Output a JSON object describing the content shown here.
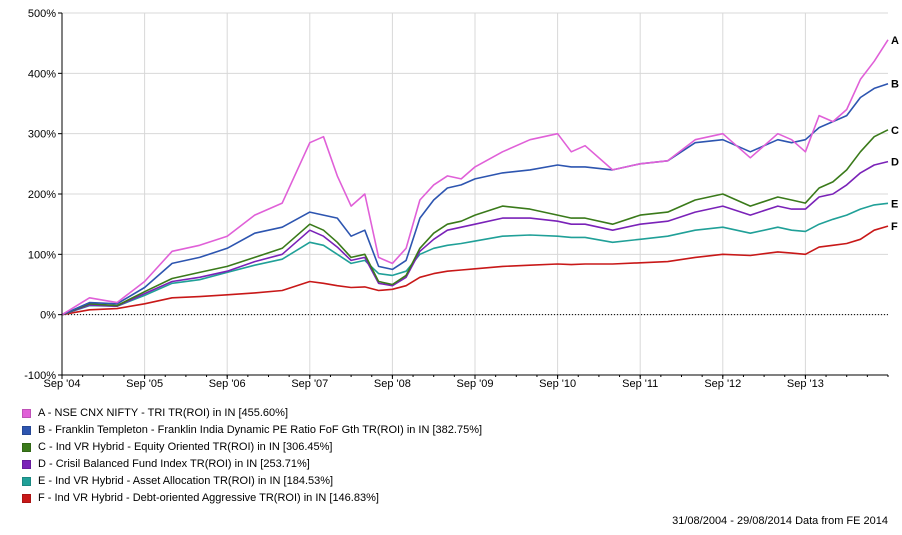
{
  "chart_data": {
    "type": "line",
    "x_ticks": [
      "Sep '04",
      "Sep '05",
      "Sep '06",
      "Sep '07",
      "Sep '08",
      "Sep '09",
      "Sep '10",
      "Sep '11",
      "Sep '12",
      "Sep '13"
    ],
    "y_ticks": [
      "500%",
      "400%",
      "300%",
      "200%",
      "100%",
      "0%",
      "-100%"
    ],
    "ylim": [
      -100,
      500
    ],
    "x_range": [
      2004.667,
      2014.667
    ],
    "grid": true,
    "x": [
      2004.667,
      2005.0,
      2005.333,
      2005.667,
      2006.0,
      2006.333,
      2006.667,
      2007.0,
      2007.333,
      2007.667,
      2007.833,
      2008.0,
      2008.167,
      2008.333,
      2008.5,
      2008.667,
      2008.833,
      2009.0,
      2009.167,
      2009.333,
      2009.5,
      2009.667,
      2010.0,
      2010.333,
      2010.667,
      2010.833,
      2011.0,
      2011.333,
      2011.667,
      2012.0,
      2012.333,
      2012.667,
      2013.0,
      2013.333,
      2013.5,
      2013.667,
      2013.833,
      2014.0,
      2014.167,
      2014.333,
      2014.5,
      2014.667
    ],
    "series": [
      {
        "label": "A",
        "color": "#e060d8",
        "values": [
          0,
          28,
          20,
          55,
          105,
          115,
          130,
          165,
          185,
          285,
          295,
          230,
          180,
          200,
          95,
          85,
          110,
          190,
          215,
          230,
          225,
          245,
          270,
          290,
          300,
          270,
          280,
          240,
          250,
          255,
          290,
          300,
          260,
          300,
          290,
          270,
          330,
          320,
          340,
          390,
          420,
          455.6
        ]
      },
      {
        "label": "B",
        "color": "#2d55b0",
        "values": [
          0,
          20,
          18,
          45,
          85,
          95,
          110,
          135,
          145,
          170,
          165,
          160,
          130,
          140,
          80,
          75,
          90,
          160,
          190,
          210,
          215,
          225,
          235,
          240,
          248,
          245,
          245,
          240,
          250,
          255,
          285,
          290,
          270,
          290,
          285,
          290,
          310,
          320,
          330,
          360,
          375,
          382.75
        ]
      },
      {
        "label": "C",
        "color": "#3a7a1a",
        "values": [
          0,
          18,
          15,
          38,
          60,
          70,
          80,
          95,
          110,
          150,
          140,
          120,
          95,
          100,
          55,
          50,
          65,
          110,
          135,
          150,
          155,
          165,
          180,
          175,
          165,
          160,
          160,
          150,
          165,
          170,
          190,
          200,
          180,
          195,
          190,
          185,
          210,
          220,
          240,
          270,
          295,
          306.45
        ]
      },
      {
        "label": "D",
        "color": "#7a22b8",
        "values": [
          0,
          16,
          14,
          35,
          55,
          62,
          72,
          88,
          100,
          140,
          130,
          112,
          90,
          95,
          52,
          48,
          62,
          105,
          125,
          140,
          145,
          150,
          160,
          160,
          155,
          150,
          150,
          140,
          150,
          155,
          170,
          180,
          165,
          180,
          175,
          175,
          195,
          200,
          215,
          235,
          248,
          253.71
        ]
      },
      {
        "label": "E",
        "color": "#20a098",
        "values": [
          0,
          15,
          14,
          32,
          52,
          58,
          70,
          82,
          92,
          120,
          115,
          100,
          85,
          90,
          68,
          65,
          72,
          100,
          110,
          115,
          118,
          122,
          130,
          132,
          130,
          128,
          128,
          120,
          125,
          130,
          140,
          145,
          135,
          145,
          140,
          138,
          150,
          158,
          165,
          175,
          182,
          184.53
        ]
      },
      {
        "label": "F",
        "color": "#c81818",
        "values": [
          0,
          8,
          10,
          18,
          28,
          30,
          33,
          36,
          40,
          55,
          52,
          48,
          45,
          46,
          40,
          42,
          48,
          62,
          68,
          72,
          74,
          76,
          80,
          82,
          84,
          83,
          84,
          84,
          86,
          88,
          95,
          100,
          98,
          104,
          102,
          100,
          112,
          115,
          118,
          125,
          140,
          146.83
        ]
      }
    ]
  },
  "legend": [
    {
      "text": "A - NSE CNX NIFTY - TRI TR(ROI) in IN [455.60%]",
      "color": "#e060d8"
    },
    {
      "text": "B - Franklin Templeton - Franklin India Dynamic PE Ratio FoF Gth TR(ROI) in IN [382.75%]",
      "color": "#2d55b0"
    },
    {
      "text": "C - Ind VR Hybrid - Equity Oriented TR(ROI) in IN [306.45%]",
      "color": "#3a7a1a"
    },
    {
      "text": "D - Crisil Balanced Fund Index TR(ROI) in IN [253.71%]",
      "color": "#7a22b8"
    },
    {
      "text": "E - Ind VR Hybrid - Asset Allocation TR(ROI) in IN [184.53%]",
      "color": "#20a098"
    },
    {
      "text": "F - Ind VR Hybrid - Debt-oriented Aggressive TR(ROI) in IN [146.83%]",
      "color": "#c81818"
    }
  ],
  "footer": "31/08/2004 - 29/08/2014 Data from FE 2014"
}
